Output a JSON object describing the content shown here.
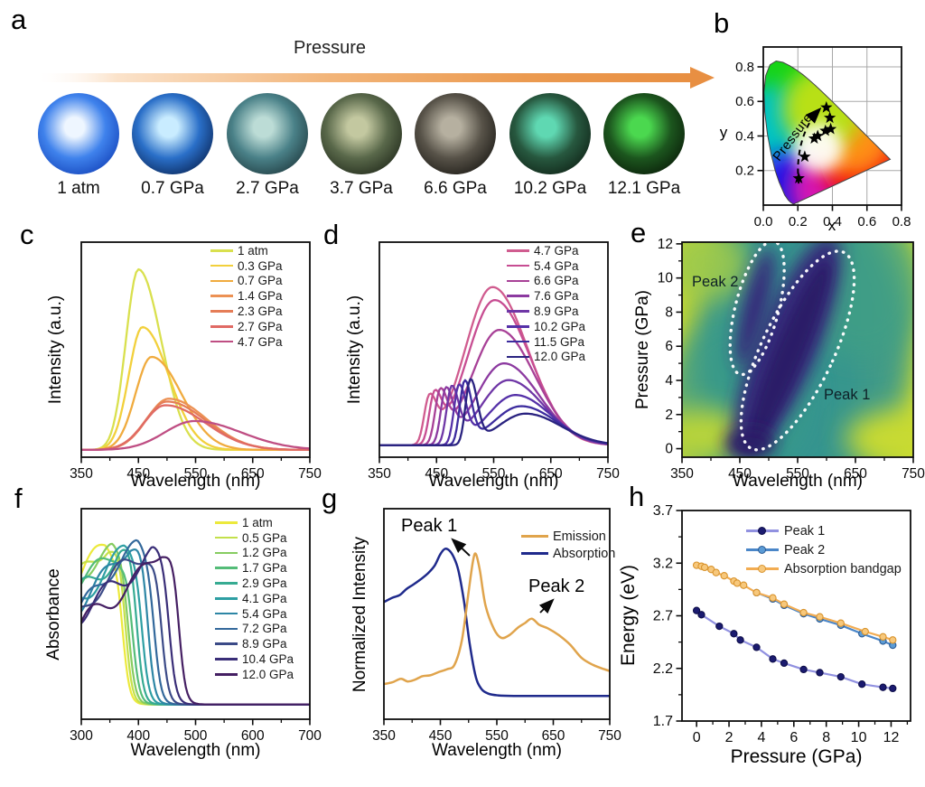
{
  "panels": {
    "a": {
      "label": "a",
      "arrow_label": "Pressure",
      "samples": [
        {
          "label": "1 atm",
          "inner": "#eef6ff",
          "mid": "#3f82ec",
          "outer": "#1646bc"
        },
        {
          "label": "0.7 GPa",
          "inner": "#c9ecff",
          "mid": "#2a6fc8",
          "outer": "#0c2a5e"
        },
        {
          "label": "2.7 GPa",
          "inner": "#bcdcd6",
          "mid": "#4a8188",
          "outer": "#223f44"
        },
        {
          "label": "3.7 GPa",
          "inner": "#c3c8a0",
          "mid": "#59684a",
          "outer": "#252e1e"
        },
        {
          "label": "6.6 GPa",
          "inner": "#b6b0a0",
          "mid": "#575248",
          "outer": "#201e19"
        },
        {
          "label": "10.2 GPa",
          "inner": "#5fd8b2",
          "mid": "#27583f",
          "outer": "#112619"
        },
        {
          "label": "12.1 GPa",
          "inner": "#4bd84f",
          "mid": "#1c561e",
          "outer": "#0b1f0a"
        }
      ],
      "arrow_color": "#e88f42"
    },
    "b": {
      "label": "b"
    },
    "c": {
      "label": "c"
    },
    "d": {
      "label": "d"
    },
    "e": {
      "label": "e"
    },
    "f": {
      "label": "f"
    },
    "g": {
      "label": "g"
    },
    "h": {
      "label": "h"
    }
  },
  "chart_data": [
    {
      "id": "b",
      "type": "scatter",
      "grid": true,
      "xlabel": "x",
      "ylabel": "y",
      "xlim": [
        0,
        0.8
      ],
      "ylim": [
        0,
        0.915
      ],
      "xticks": [
        0.0,
        0.2,
        0.4,
        0.6,
        0.8
      ],
      "yticks": [
        0.2,
        0.4,
        0.6,
        0.8
      ],
      "annotation": "Pressure",
      "cie_points": [
        [
          0.205,
          0.155
        ],
        [
          0.24,
          0.28
        ],
        [
          0.295,
          0.385
        ],
        [
          0.315,
          0.4
        ],
        [
          0.36,
          0.43
        ],
        [
          0.39,
          0.44
        ],
        [
          0.385,
          0.505
        ],
        [
          0.365,
          0.565
        ]
      ]
    },
    {
      "id": "c",
      "type": "line",
      "xlabel": "Wavelength (nm)",
      "ylabel": "Intensity (a.u.)",
      "xlim": [
        350,
        750
      ],
      "xticks": [
        350,
        450,
        550,
        650,
        750
      ],
      "legend_position": "top-right",
      "series": [
        {
          "label": "1 atm",
          "color": "#d9e04e",
          "peak_nm": 450,
          "rel_intensity": 0.97,
          "w_left": 22,
          "w_right": 40
        },
        {
          "label": "0.3 GPa",
          "color": "#f2d03c",
          "peak_nm": 457,
          "rel_intensity": 0.66,
          "w_left": 24,
          "w_right": 46
        },
        {
          "label": "0.7 GPa",
          "color": "#f0ab3e",
          "peak_nm": 473,
          "rel_intensity": 0.5,
          "w_left": 28,
          "w_right": 52
        },
        {
          "label": "1.4 GPa",
          "color": "#ec9154",
          "peak_nm": 503,
          "rel_intensity": 0.275,
          "w_left": 38,
          "w_right": 66
        },
        {
          "label": "2.3 GPa",
          "color": "#e57d57",
          "peak_nm": 500,
          "rel_intensity": 0.26,
          "w_left": 38,
          "w_right": 68
        },
        {
          "label": "2.7 GPa",
          "color": "#e06a64",
          "peak_nm": 497,
          "rel_intensity": 0.24,
          "w_left": 37,
          "w_right": 70
        },
        {
          "label": "4.7 GPa",
          "color": "#bf4e83",
          "peak_nm": 548,
          "rel_intensity": 0.155,
          "w_left": 52,
          "w_right": 82
        }
      ]
    },
    {
      "id": "d",
      "type": "line",
      "xlabel": "Wavelength (nm)",
      "ylabel": "Intensity (a.u.)",
      "xlim": [
        350,
        750
      ],
      "xticks": [
        350,
        450,
        550,
        650,
        750
      ],
      "legend_position": "top-right",
      "series": [
        {
          "label": "4.7 GPa",
          "color": "#d05c8f",
          "sharp_nm": 437,
          "sharp_int": 0.22,
          "broad_nm": 548,
          "broad_int": 0.85
        },
        {
          "label": "5.4 GPa",
          "color": "#c74d92",
          "sharp_nm": 446,
          "sharp_int": 0.23,
          "broad_nm": 552,
          "broad_int": 0.78
        },
        {
          "label": "6.6 GPa",
          "color": "#a84197",
          "sharp_nm": 456,
          "sharp_int": 0.25,
          "broad_nm": 560,
          "broad_int": 0.62
        },
        {
          "label": "7.6 GPa",
          "color": "#8c3aa0",
          "sharp_nm": 466,
          "sharp_int": 0.27,
          "broad_nm": 568,
          "broad_int": 0.44
        },
        {
          "label": "8.9 GPa",
          "color": "#6f37a6",
          "sharp_nm": 476,
          "sharp_int": 0.285,
          "broad_nm": 576,
          "broad_int": 0.35
        },
        {
          "label": "10.2 GPa",
          "color": "#5531a8",
          "sharp_nm": 489,
          "sharp_int": 0.3,
          "broad_nm": 588,
          "broad_int": 0.27
        },
        {
          "label": "11.5 GPa",
          "color": "#3c2c9e",
          "sharp_nm": 499,
          "sharp_int": 0.33,
          "broad_nm": 598,
          "broad_int": 0.21
        },
        {
          "label": "12.0 GPa",
          "color": "#2a2380",
          "sharp_nm": 509,
          "sharp_int": 0.34,
          "broad_nm": 606,
          "broad_int": 0.17
        }
      ]
    },
    {
      "id": "e",
      "type": "heatmap",
      "xlabel": "Wavelength (nm)",
      "ylabel": "Pressure (GPa)",
      "xlim": [
        350,
        750
      ],
      "ylim": [
        -0.5,
        12.1
      ],
      "xticks": [
        350,
        450,
        550,
        650,
        750
      ],
      "yticks": [
        0,
        2,
        4,
        6,
        8,
        10,
        12
      ],
      "annotations": [
        {
          "text": "Peak 2"
        },
        {
          "text": "Peak 1"
        }
      ],
      "colormap": {
        "low": "#c9da30",
        "mid": "#369490",
        "high": "#2a1f68"
      },
      "peak1_track": {
        "wavelength_nm": [
          455,
          610
        ],
        "pressure_gpa": [
          0,
          12
        ]
      },
      "peak2_track": {
        "wavelength_nm": [
          448,
          505
        ],
        "pressure_gpa": [
          4.5,
          12
        ]
      }
    },
    {
      "id": "f",
      "type": "line",
      "xlabel": "Wavelength (nm)",
      "ylabel": "Absorbance",
      "xlim": [
        300,
        700
      ],
      "xticks": [
        300,
        400,
        500,
        600,
        700
      ],
      "legend_position": "top-right",
      "series": [
        {
          "label": "1 atm",
          "color": "#ece93c",
          "edge_nm": 372
        },
        {
          "label": "0.5 GPa",
          "color": "#c3e04b",
          "edge_nm": 377
        },
        {
          "label": "1.2 GPa",
          "color": "#86cc60",
          "edge_nm": 383
        },
        {
          "label": "1.7 GPa",
          "color": "#54bc78",
          "edge_nm": 389
        },
        {
          "label": "2.9 GPa",
          "color": "#36ab92",
          "edge_nm": 397
        },
        {
          "label": "4.1 GPa",
          "color": "#2e9fa3",
          "edge_nm": 406
        },
        {
          "label": "5.4 GPa",
          "color": "#2d86a5",
          "edge_nm": 416
        },
        {
          "label": "7.2 GPa",
          "color": "#33689b",
          "edge_nm": 428
        },
        {
          "label": "8.9 GPa",
          "color": "#3b4a87",
          "edge_nm": 440
        },
        {
          "label": "10.4 GPa",
          "color": "#3a2e78",
          "edge_nm": 454
        },
        {
          "label": "12.0 GPa",
          "color": "#451f63",
          "edge_nm": 470
        }
      ]
    },
    {
      "id": "g",
      "type": "line",
      "xlabel": "Wavelength (nm)",
      "ylabel": "Normalized Intensity",
      "xlim": [
        350,
        750
      ],
      "xticks": [
        350,
        450,
        550,
        650,
        750
      ],
      "annotations": [
        {
          "text": "Peak 1"
        },
        {
          "text": "Peak 2"
        }
      ],
      "series": [
        {
          "label": "Emission",
          "color": "#e0a44c",
          "points": [
            [
              350,
              0.15
            ],
            [
              365,
              0.16
            ],
            [
              380,
              0.18
            ],
            [
              392,
              0.165
            ],
            [
              405,
              0.175
            ],
            [
              418,
              0.195
            ],
            [
              432,
              0.2
            ],
            [
              448,
              0.22
            ],
            [
              462,
              0.235
            ],
            [
              475,
              0.26
            ],
            [
              488,
              0.4
            ],
            [
              500,
              0.68
            ],
            [
              508,
              0.86
            ],
            [
              513,
              0.895
            ],
            [
              520,
              0.8
            ],
            [
              530,
              0.6
            ],
            [
              545,
              0.465
            ],
            [
              558,
              0.415
            ],
            [
              572,
              0.43
            ],
            [
              588,
              0.475
            ],
            [
              600,
              0.5
            ],
            [
              612,
              0.525
            ],
            [
              625,
              0.49
            ],
            [
              640,
              0.47
            ],
            [
              660,
              0.43
            ],
            [
              680,
              0.375
            ],
            [
              700,
              0.3
            ],
            [
              720,
              0.26
            ],
            [
              740,
              0.235
            ],
            [
              750,
              0.225
            ]
          ]
        },
        {
          "label": "Absorption",
          "color": "#1f2a8c",
          "points": [
            [
              350,
              0.62
            ],
            [
              365,
              0.645
            ],
            [
              378,
              0.66
            ],
            [
              390,
              0.695
            ],
            [
              402,
              0.72
            ],
            [
              415,
              0.75
            ],
            [
              428,
              0.785
            ],
            [
              440,
              0.83
            ],
            [
              450,
              0.895
            ],
            [
              458,
              0.925
            ],
            [
              466,
              0.915
            ],
            [
              474,
              0.875
            ],
            [
              482,
              0.8
            ],
            [
              492,
              0.62
            ],
            [
              502,
              0.38
            ],
            [
              512,
              0.2
            ],
            [
              522,
              0.125
            ],
            [
              535,
              0.095
            ],
            [
              552,
              0.085
            ],
            [
              580,
              0.082
            ],
            [
              650,
              0.082
            ],
            [
              750,
              0.082
            ]
          ]
        }
      ]
    },
    {
      "id": "h",
      "type": "scatter-line",
      "xlabel": "Pressure (GPa)",
      "ylabel": "Energy (eV)",
      "xlim": [
        -0.9,
        13.2
      ],
      "ylim": [
        1.7,
        3.7
      ],
      "xticks": [
        0,
        2,
        4,
        6,
        8,
        10,
        12
      ],
      "yticks": [
        1.7,
        2.2,
        2.7,
        3.2,
        3.7
      ],
      "series": [
        {
          "label": "Peak 1",
          "line_color": "#9191e0",
          "marker_color": "#1b1b70",
          "marker_edge": "#0e0e4a",
          "x": [
            0,
            0.3,
            1.4,
            2.3,
            2.7,
            3.7,
            4.7,
            5.4,
            6.6,
            7.6,
            8.9,
            10.2,
            11.5,
            12.1
          ],
          "y": [
            2.75,
            2.71,
            2.6,
            2.53,
            2.47,
            2.4,
            2.29,
            2.25,
            2.19,
            2.16,
            2.12,
            2.05,
            2.02,
            2.01
          ]
        },
        {
          "label": "Peak 2",
          "line_color": "#4a86c8",
          "marker_color": "#5b9bd5",
          "marker_edge": "#2a5a94",
          "x": [
            3.7,
            4.7,
            5.4,
            6.6,
            7.6,
            8.9,
            10.2,
            11.5,
            12.1
          ],
          "y": [
            2.92,
            2.86,
            2.8,
            2.72,
            2.67,
            2.61,
            2.53,
            2.46,
            2.42
          ]
        },
        {
          "label": "Absorption bandgap",
          "line_color": "#f2ac52",
          "marker_color": "#f7c87c",
          "marker_edge": "#d9942e",
          "x": [
            0,
            0.3,
            0.5,
            0.9,
            1.2,
            1.7,
            2.3,
            2.5,
            2.9,
            3.7,
            4.7,
            5.4,
            6.6,
            7.6,
            8.9,
            10.4,
            11.5,
            12.1
          ],
          "y": [
            3.18,
            3.17,
            3.16,
            3.14,
            3.11,
            3.08,
            3.03,
            3.01,
            2.99,
            2.92,
            2.87,
            2.81,
            2.73,
            2.69,
            2.63,
            2.55,
            2.5,
            2.47
          ]
        }
      ]
    }
  ]
}
